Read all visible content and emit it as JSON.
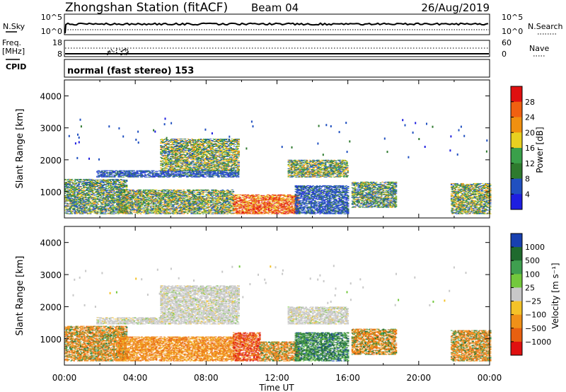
{
  "header": {
    "station": "Zhongshan Station (fitACF)",
    "beam": "Beam 04",
    "date": "26/Aug/2019"
  },
  "noise_panel": {
    "left_label": "N.Sky",
    "right_label": "N.Search",
    "left_ticks": [
      "10^5",
      "10^0"
    ],
    "right_ticks": [
      "10^5",
      "10^0"
    ]
  },
  "freq_panel": {
    "left_label_top": "Freq.",
    "left_label_unit": "[MHz]",
    "left_ticks": [
      "18",
      "8"
    ],
    "right_label": "Nave",
    "right_ticks": [
      "60",
      "0"
    ]
  },
  "cpid": {
    "label": "CPID",
    "text": "normal (fast stereo) 153"
  },
  "colors": {
    "power": [
      "#1e1ee0",
      "#2050c0",
      "#2e7a2e",
      "#3aa04a",
      "#e8d020",
      "#f09010",
      "#f06010",
      "#e01010"
    ],
    "velocity": [
      "#1840b0",
      "#1f6a2e",
      "#3f9f4f",
      "#73c83c",
      "#c8c8c8",
      "#f4c228",
      "#f09018",
      "#e86010",
      "#e01010"
    ]
  },
  "chart_data": [
    {
      "type": "heatmap",
      "name": "power",
      "ylabel": "Slant Range [km]",
      "y_ticks": [
        1000,
        2000,
        3000,
        4000
      ],
      "ylim": [
        180,
        4500
      ],
      "x_ticks": [
        "00:00",
        "04:00",
        "08:00",
        "12:00",
        "16:00",
        "20:00",
        "00:00"
      ],
      "xlim": [
        0,
        24
      ],
      "colorbar": {
        "label": "Power [dB]",
        "ticks": [
          "4",
          "8",
          "12",
          "16",
          "20",
          "24",
          "28"
        ],
        "range": [
          0,
          32
        ]
      },
      "regions": [
        {
          "t": [
            0.0,
            3.5
          ],
          "r": [
            300,
            1400
          ],
          "level": "mid"
        },
        {
          "t": [
            1.8,
            9.8
          ],
          "r": [
            1450,
            1650
          ],
          "level": "low"
        },
        {
          "t": [
            5.4,
            9.8
          ],
          "r": [
            1650,
            2650
          ],
          "level": "mixed"
        },
        {
          "t": [
            3.0,
            9.5
          ],
          "r": [
            300,
            1050
          ],
          "level": "mixed"
        },
        {
          "t": [
            9.5,
            13.2
          ],
          "r": [
            300,
            900
          ],
          "level": "high"
        },
        {
          "t": [
            13.0,
            16.0
          ],
          "r": [
            300,
            1200
          ],
          "level": "low"
        },
        {
          "t": [
            12.6,
            16.0
          ],
          "r": [
            1450,
            2000
          ],
          "level": "mixed"
        },
        {
          "t": [
            16.2,
            18.7
          ],
          "r": [
            500,
            1300
          ],
          "level": "mid"
        },
        {
          "t": [
            21.8,
            24.0
          ],
          "r": [
            300,
            1250
          ],
          "level": "mixed"
        }
      ]
    },
    {
      "type": "heatmap",
      "name": "velocity",
      "ylabel": "Slant Range [km]",
      "y_ticks": [
        1000,
        2000,
        3000,
        4000
      ],
      "ylim": [
        180,
        4500
      ],
      "x_ticks": [
        "00:00",
        "04:00",
        "08:00",
        "12:00",
        "16:00",
        "20:00",
        "00:00"
      ],
      "xlim": [
        0,
        24
      ],
      "xlabel": "Time UT",
      "colorbar": {
        "label": "Velocity [m s⁻¹]",
        "ticks": [
          "1000",
          "500",
          "100",
          "25",
          "−25",
          "−100",
          "−500",
          "−1000"
        ]
      },
      "regions": [
        {
          "t": [
            0.0,
            3.5
          ],
          "r": [
            300,
            1400
          ],
          "vel": "neg-mixed"
        },
        {
          "t": [
            1.8,
            9.8
          ],
          "r": [
            1450,
            1650
          ],
          "vel": "zero"
        },
        {
          "t": [
            5.4,
            9.8
          ],
          "r": [
            1650,
            2650
          ],
          "vel": "zero"
        },
        {
          "t": [
            3.0,
            9.5
          ],
          "r": [
            300,
            1050
          ],
          "vel": "neg"
        },
        {
          "t": [
            9.5,
            11.0
          ],
          "r": [
            300,
            1200
          ],
          "vel": "strong-neg"
        },
        {
          "t": [
            11.0,
            13.2
          ],
          "r": [
            300,
            900
          ],
          "vel": "neg-mixed"
        },
        {
          "t": [
            13.0,
            16.0
          ],
          "r": [
            300,
            1200
          ],
          "vel": "pos"
        },
        {
          "t": [
            12.6,
            16.0
          ],
          "r": [
            1450,
            2000
          ],
          "vel": "zero"
        },
        {
          "t": [
            16.2,
            18.7
          ],
          "r": [
            500,
            1300
          ],
          "vel": "neg-mixed"
        },
        {
          "t": [
            21.8,
            24.0
          ],
          "r": [
            300,
            1250
          ],
          "vel": "neg-mixed"
        }
      ]
    }
  ]
}
